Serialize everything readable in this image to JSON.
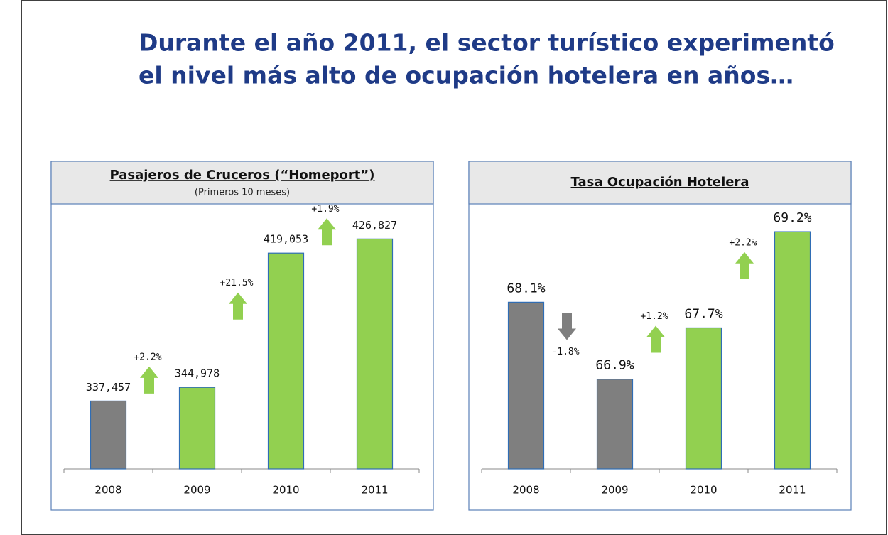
{
  "title": [
    "Durante el año 2011, el sector turístico experimentó",
    "el nivel más alto de ocupación hotelera en años…"
  ],
  "chart_data": [
    {
      "type": "bar",
      "title": "Pasajeros de Cruceros (“Homeport”)",
      "subtitle": "(Primeros 10 meses)",
      "categories": [
        "2008",
        "2009",
        "2010",
        "2011"
      ],
      "values": [
        337457,
        344978,
        419053,
        426827
      ],
      "value_labels": [
        "337,457",
        "344,978",
        "419,053",
        "426,827"
      ],
      "colors": [
        "#7f7f7f",
        "#92d050",
        "#92d050",
        "#92d050"
      ],
      "ylim": [
        300000,
        445000
      ],
      "changes": [
        {
          "value": 2.2,
          "label": "+2.2%"
        },
        {
          "value": 21.5,
          "label": "+21.5%"
        },
        {
          "value": 1.9,
          "label": "+1.9%"
        }
      ],
      "up_color": "#92d050",
      "down_color": "#7f7f7f"
    },
    {
      "type": "bar",
      "title": "Tasa Ocupación Hotelera",
      "categories": [
        "2008",
        "2009",
        "2010",
        "2011"
      ],
      "values": [
        68.1,
        66.9,
        67.7,
        69.2
      ],
      "value_labels": [
        "68.1%",
        "66.9%",
        "67.7%",
        "69.2%"
      ],
      "colors": [
        "#7f7f7f",
        "#7f7f7f",
        "#92d050",
        "#92d050"
      ],
      "ylim": [
        65.5,
        69.6
      ],
      "changes": [
        {
          "value": -1.8,
          "label": "-1.8%"
        },
        {
          "value": 1.2,
          "label": "+1.2%"
        },
        {
          "value": 2.2,
          "label": "+2.2%"
        }
      ],
      "up_color": "#92d050",
      "down_color": "#7f7f7f"
    }
  ]
}
